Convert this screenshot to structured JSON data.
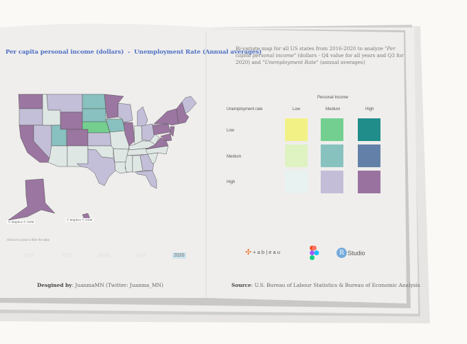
{
  "left_page": {
    "title": "Per capita personal income (dollars)  -  Unemployment Rate (Annual averages)",
    "map_attribution": "© Mapbox © OSM",
    "filter_hint": "Click on a year to filter the data",
    "years": [
      "2016",
      "2017",
      "2018",
      "2019",
      "2020"
    ],
    "selected_year": "2020",
    "credit_label": "Desgined by",
    "credit_value": ": JuanmaMN (Twitter: Juanma_MN)"
  },
  "right_page": {
    "description_parts": [
      "Bi-variate map for all US states from 2016-2020 to analyze \"",
      "Per capita personal income",
      "\" (dollars - Q4 value for all years and Q3 for 2020) and \"",
      "Unemployment Rate",
      "\" (annual averages)"
    ],
    "legend": {
      "x_title": "Personal Income",
      "y_title": "Unemployment rate",
      "columns": [
        "Low",
        "Medium",
        "High"
      ],
      "rows": [
        "Low",
        "Medium",
        "High"
      ],
      "colors": [
        [
          "#f2f185",
          "#73cf8f",
          "#208d8a"
        ],
        [
          "#dff2c2",
          "#88c2bf",
          "#6381a8"
        ],
        [
          "#e8f2f1",
          "#c4bdd8",
          "#9a72a0"
        ]
      ]
    },
    "tools": {
      "tableau": "+ a b | e a u",
      "figma_icon": "figma-logo",
      "rstudio_r": "R",
      "rstudio": "Studio"
    },
    "source_label": "Source",
    "source_value": ": U.S. Bureau of Labour Statistics & Bureau of Economic Analysis"
  },
  "map_colors": {
    "purple": "#9a76a0",
    "lavender": "#c3bfd8",
    "pale": "#dfe7e5",
    "teal": "#88c1bf",
    "green": "#74cf8f"
  }
}
